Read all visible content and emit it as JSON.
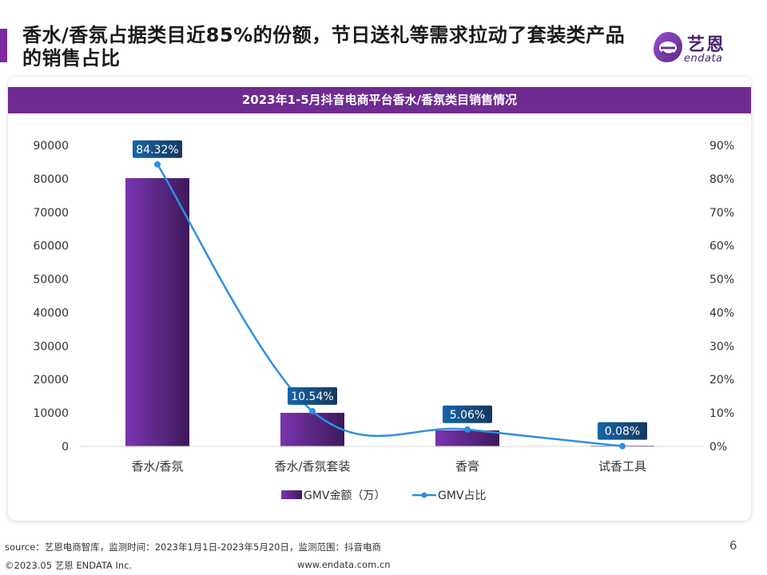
{
  "header": {
    "title": "香水/香氛占据类目近85%的份额，节日送礼等需求拉动了套装类产品的销售占比",
    "logo_name": "艺恩",
    "logo_sub": "endata"
  },
  "chart_data": {
    "type": "bar",
    "title": "2023年1-5月抖音电商平台香水/香氛类目销售情况",
    "categories": [
      "香水/香氛",
      "香水/香氛套装",
      "香膏",
      "试香工具"
    ],
    "series": [
      {
        "name": "GMV金额（万）",
        "type": "bar",
        "axis": "left",
        "values": [
          80200,
          10050,
          4800,
          80
        ]
      },
      {
        "name": "GMV占比",
        "type": "line",
        "axis": "right",
        "values": [
          84.32,
          10.54,
          5.06,
          0.08
        ],
        "labels": [
          "84.32%",
          "10.54%",
          "5.06%",
          "0.08%"
        ]
      }
    ],
    "ylim": [
      0,
      90000
    ],
    "yticks": [
      "0",
      "10000",
      "20000",
      "30000",
      "40000",
      "50000",
      "60000",
      "70000",
      "80000",
      "90000"
    ],
    "y2lim": [
      0,
      90
    ],
    "y2ticks": [
      "0%",
      "10%",
      "20%",
      "30%",
      "40%",
      "50%",
      "60%",
      "70%",
      "80%",
      "90%"
    ],
    "legend_position": "bottom",
    "grid": false,
    "colors": {
      "bar_top": "#7b34b0",
      "bar_bottom": "#3d1a5c",
      "line": "#2f8fe0",
      "label_bg": "#1565a8",
      "label_bg_dark": "#17375e"
    }
  },
  "footer": {
    "source": "source：艺恩电商智库，监测时间：2023年1月1日-2023年5月20日，监测范围：抖音电商",
    "copyright": "©2023.05 艺恩 ENDATA Inc.",
    "url": "www.endata.com.cn",
    "page_number": "6"
  }
}
